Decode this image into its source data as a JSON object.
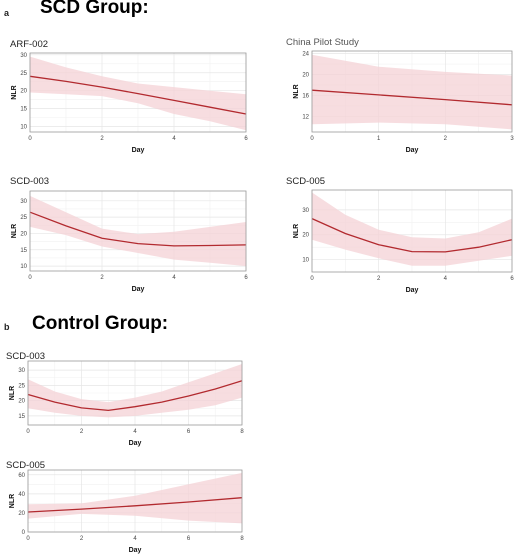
{
  "panels": [
    {
      "letter": "a",
      "title": "SCD Group:"
    },
    {
      "letter": "b",
      "title": "Control Group:"
    }
  ],
  "colors": {
    "line": "#b22a2f",
    "band": "#f4d2d5",
    "grid": "#e6e6e6",
    "border": "#9a9a9a"
  },
  "chart_data": [
    {
      "type": "line",
      "panel": "a",
      "title": "ARF-002",
      "xlabel": "Day",
      "ylabel": "NLR",
      "xlim": [
        0,
        6
      ],
      "ylim": [
        8.5,
        30.5
      ],
      "xticks": [
        0,
        2,
        4,
        6
      ],
      "yticks": [
        10,
        15,
        20,
        25,
        30
      ],
      "x": [
        0,
        1,
        2,
        3,
        4,
        5,
        6
      ],
      "series": [
        {
          "values": [
            24,
            22.6,
            21,
            19.2,
            17.3,
            15.4,
            13.5
          ],
          "lower": [
            19.5,
            19,
            18.5,
            16.5,
            13.5,
            11.5,
            9
          ],
          "upper": [
            29.5,
            26.5,
            24,
            22,
            21,
            20,
            19
          ]
        }
      ]
    },
    {
      "type": "line",
      "panel": "a",
      "title": "China Pilot Study",
      "xlabel": "Day",
      "ylabel": "NLR",
      "xlim": [
        0,
        3
      ],
      "ylim": [
        9,
        24.5
      ],
      "xticks": [
        0,
        1,
        2,
        3
      ],
      "yticks": [
        12,
        16,
        20,
        24
      ],
      "x": [
        0,
        1,
        2,
        3
      ],
      "series": [
        {
          "values": [
            17,
            16.1,
            15.2,
            14.2
          ],
          "lower": [
            10.5,
            10.8,
            10.5,
            9.5
          ],
          "upper": [
            23.8,
            21.5,
            20.5,
            19.8
          ]
        }
      ]
    },
    {
      "type": "line",
      "panel": "a",
      "title": "SCD-003",
      "xlabel": "Day",
      "ylabel": "NLR",
      "xlim": [
        0,
        6
      ],
      "ylim": [
        8.5,
        33
      ],
      "xticks": [
        0,
        2,
        4,
        6
      ],
      "yticks": [
        10,
        15,
        20,
        25,
        30
      ],
      "x": [
        0,
        1,
        2,
        3,
        4,
        5,
        6
      ],
      "series": [
        {
          "values": [
            26.5,
            22.3,
            18.5,
            16.9,
            16.2,
            16.3,
            16.5
          ],
          "lower": [
            22,
            19.5,
            16,
            14,
            12,
            11,
            10
          ],
          "upper": [
            31.5,
            26.5,
            21.5,
            19.8,
            20.5,
            22,
            23.5
          ]
        }
      ]
    },
    {
      "type": "line",
      "panel": "a",
      "title": "SCD-005",
      "xlabel": "Day",
      "ylabel": "NLR",
      "xlim": [
        0,
        6
      ],
      "ylim": [
        5,
        38
      ],
      "xticks": [
        0,
        2,
        4,
        6
      ],
      "yticks": [
        10,
        20,
        30
      ],
      "x": [
        0,
        1,
        2,
        3,
        4,
        5,
        6
      ],
      "series": [
        {
          "values": [
            26.5,
            20.5,
            16,
            13.2,
            13.1,
            15,
            18
          ],
          "lower": [
            18,
            14,
            10.5,
            7.5,
            7.5,
            9.5,
            11.5
          ],
          "upper": [
            37,
            28,
            22,
            19,
            18.5,
            21,
            26.5
          ]
        }
      ]
    },
    {
      "type": "line",
      "panel": "b",
      "title": "SCD-003",
      "xlabel": "Day",
      "ylabel": "NLR",
      "xlim": [
        0,
        8
      ],
      "ylim": [
        12,
        33
      ],
      "xticks": [
        0,
        2,
        4,
        6,
        8
      ],
      "yticks": [
        15,
        20,
        25,
        30
      ],
      "x": [
        0,
        1,
        2,
        3,
        4,
        5,
        6,
        7,
        8
      ],
      "series": [
        {
          "values": [
            22,
            19.5,
            17.6,
            16.8,
            18,
            19.5,
            21.5,
            23.8,
            26.5
          ],
          "lower": [
            17.5,
            16,
            15,
            14.5,
            15,
            16,
            17,
            18.5,
            21
          ],
          "upper": [
            27,
            23,
            20.5,
            19.5,
            21,
            23,
            26,
            29,
            32
          ]
        }
      ]
    },
    {
      "type": "line",
      "panel": "b",
      "title": "SCD-005",
      "xlabel": "Day",
      "ylabel": "NLR",
      "xlim": [
        0,
        8
      ],
      "ylim": [
        0,
        65
      ],
      "xticks": [
        0,
        2,
        4,
        6,
        8
      ],
      "yticks": [
        0,
        20,
        40,
        60
      ],
      "x": [
        0,
        2,
        4,
        6,
        8
      ],
      "series": [
        {
          "values": [
            21,
            24,
            27.5,
            31.5,
            36
          ],
          "lower": [
            14,
            19,
            17,
            12,
            9
          ],
          "upper": [
            29,
            30,
            38,
            50,
            62
          ]
        }
      ]
    }
  ]
}
